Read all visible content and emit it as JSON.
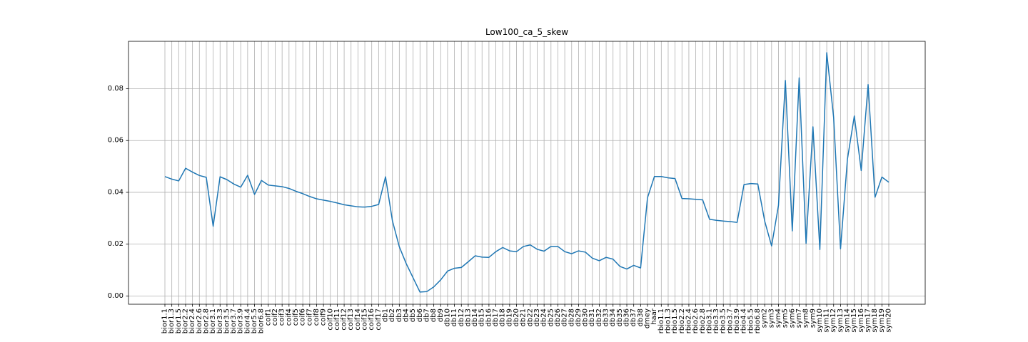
{
  "chart_data": {
    "type": "line",
    "title": "Low100_ca_5_skew",
    "xlabel": "",
    "ylabel": "",
    "grid": true,
    "legend": "none",
    "ylim": [
      -0.0032,
      0.0983
    ],
    "yticks": [
      0.0,
      0.02,
      0.04,
      0.06,
      0.08
    ],
    "ytick_labels": [
      "0.00",
      "0.02",
      "0.04",
      "0.06",
      "0.08"
    ],
    "line_color": "#1f77b4",
    "categories": [
      "bior1.1",
      "bior1.3",
      "bior1.5",
      "bior2.2",
      "bior2.4",
      "bior2.6",
      "bior2.8",
      "bior3.1",
      "bior3.3",
      "bior3.5",
      "bior3.7",
      "bior3.9",
      "bior4.4",
      "bior5.5",
      "bior6.8",
      "coif1",
      "coif2",
      "coif3",
      "coif4",
      "coif5",
      "coif6",
      "coif7",
      "coif8",
      "coif9",
      "coif10",
      "coif11",
      "coif12",
      "coif13",
      "coif14",
      "coif15",
      "coif16",
      "coif17",
      "db1",
      "db2",
      "db3",
      "db4",
      "db5",
      "db6",
      "db7",
      "db8",
      "db9",
      "db10",
      "db11",
      "db12",
      "db13",
      "db14",
      "db15",
      "db16",
      "db17",
      "db18",
      "db19",
      "db20",
      "db21",
      "db22",
      "db23",
      "db24",
      "db25",
      "db26",
      "db27",
      "db28",
      "db29",
      "db30",
      "db31",
      "db32",
      "db33",
      "db34",
      "db35",
      "db36",
      "db37",
      "db38",
      "dmey",
      "haar",
      "rbio1.1",
      "rbio1.3",
      "rbio1.5",
      "rbio2.2",
      "rbio2.4",
      "rbio2.6",
      "rbio2.8",
      "rbio3.1",
      "rbio3.3",
      "rbio3.5",
      "rbio3.7",
      "rbio3.9",
      "rbio4.4",
      "rbio5.5",
      "rbio6.8",
      "sym2",
      "sym3",
      "sym4",
      "sym5",
      "sym6",
      "sym7",
      "sym8",
      "sym9",
      "sym10",
      "sym11",
      "sym12",
      "sym13",
      "sym14",
      "sym15",
      "sym16",
      "sym17",
      "sym18",
      "sym19",
      "sym20"
    ],
    "series": [
      {
        "values": [
          0.0461,
          0.0451,
          0.0444,
          0.0493,
          0.0478,
          0.0465,
          0.0458,
          0.0269,
          0.046,
          0.0449,
          0.0432,
          0.042,
          0.0466,
          0.0392,
          0.0446,
          0.0428,
          0.0425,
          0.0422,
          0.0415,
          0.0404,
          0.0395,
          0.0384,
          0.0375,
          0.037,
          0.0365,
          0.0359,
          0.0352,
          0.0348,
          0.0344,
          0.0343,
          0.0346,
          0.0353,
          0.046,
          0.029,
          0.019,
          0.0125,
          0.007,
          0.0015,
          0.0017,
          0.0035,
          0.0062,
          0.0096,
          0.0107,
          0.011,
          0.0132,
          0.0155,
          0.015,
          0.0149,
          0.0171,
          0.0187,
          0.0174,
          0.0171,
          0.0191,
          0.0197,
          0.018,
          0.0173,
          0.0191,
          0.0191,
          0.0171,
          0.0163,
          0.0174,
          0.0169,
          0.0146,
          0.0136,
          0.0149,
          0.0142,
          0.0114,
          0.0104,
          0.0118,
          0.0108,
          0.0379,
          0.0461,
          0.0461,
          0.0456,
          0.0453,
          0.0376,
          0.0375,
          0.0373,
          0.0371,
          0.0296,
          0.0292,
          0.0289,
          0.0287,
          0.0284,
          0.043,
          0.0434,
          0.0432,
          0.0289,
          0.0193,
          0.035,
          0.0832,
          0.0251,
          0.0842,
          0.0203,
          0.0653,
          0.0179,
          0.0939,
          0.0689,
          0.0182,
          0.0528,
          0.0695,
          0.0484,
          0.0816,
          0.0381,
          0.0459,
          0.0439
        ]
      }
    ]
  }
}
